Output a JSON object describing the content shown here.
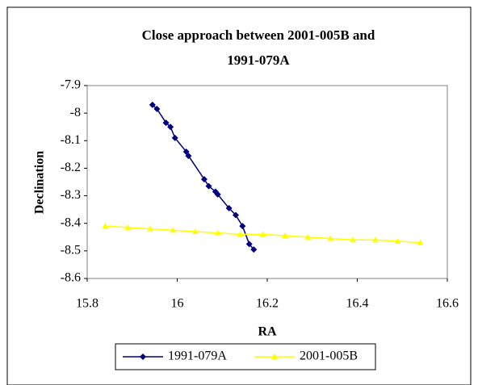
{
  "chart_data": {
    "type": "scatter",
    "title_lines": [
      "Close approach between 2001-005B and",
      "1991-079A"
    ],
    "x_label": "RA",
    "y_label": "Declination",
    "xlim": [
      15.8,
      16.6
    ],
    "xticks": [
      15.8,
      16,
      16.2,
      16.4,
      16.6
    ],
    "ylim": [
      -8.6,
      -7.9
    ],
    "yticks": [
      -7.9,
      -8,
      -8.1,
      -8.2,
      -8.3,
      -8.4,
      -8.5,
      -8.6
    ],
    "series": [
      {
        "name": "1991-079A",
        "color": "#000080",
        "marker": "diamond",
        "x": [
          15.945,
          15.955,
          15.975,
          15.985,
          15.995,
          16.02,
          16.025,
          16.06,
          16.07,
          16.085,
          16.09,
          16.115,
          16.13,
          16.145,
          16.16,
          16.17
        ],
        "values": [
          -7.97,
          -7.985,
          -8.035,
          -8.05,
          -8.09,
          -8.14,
          -8.155,
          -8.24,
          -8.265,
          -8.285,
          -8.295,
          -8.345,
          -8.37,
          -8.41,
          -8.475,
          -8.495
        ]
      },
      {
        "name": "2001-005B",
        "color": "#ffff00",
        "marker": "triangle",
        "x": [
          15.84,
          15.89,
          15.94,
          15.99,
          16.04,
          16.09,
          16.14,
          16.19,
          16.24,
          16.29,
          16.34,
          16.39,
          16.44,
          16.49,
          16.54
        ],
        "values": [
          -8.41,
          -8.415,
          -8.42,
          -8.425,
          -8.43,
          -8.435,
          -8.44,
          -8.44,
          -8.445,
          -8.45,
          -8.455,
          -8.46,
          -8.46,
          -8.465,
          -8.47
        ]
      }
    ]
  }
}
